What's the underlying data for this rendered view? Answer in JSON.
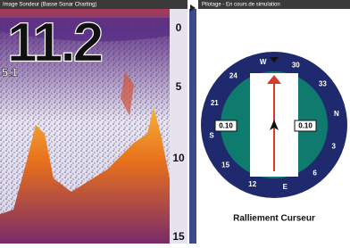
{
  "left_panel": {
    "title": "Image Sondeur  (Basse Sonar Charting)",
    "depth": "11.2",
    "secondary": "5.1",
    "scale_labels": [
      "0",
      "5",
      "10",
      "15"
    ]
  },
  "right_panel": {
    "title": "Pilotage - En cours de simulation",
    "compass_labels": [
      "W",
      "30",
      "33",
      "N",
      "3",
      "6",
      "E",
      "12",
      "15",
      "S",
      "21",
      "24"
    ],
    "left_value": "0.10",
    "right_value": "0.10",
    "caption": "Ralliement Curseur"
  }
}
